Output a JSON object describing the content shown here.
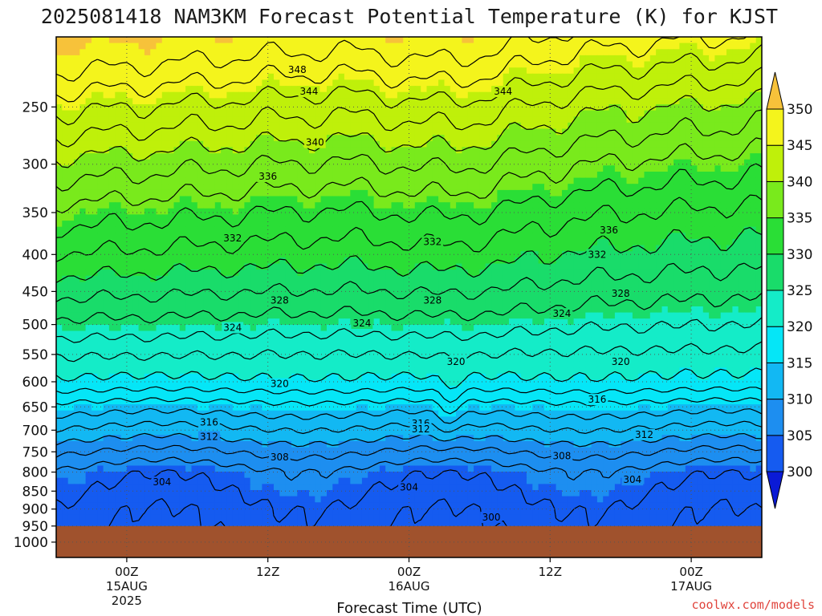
{
  "chart_data": {
    "type": "heatmap",
    "title": "2025081418 NAM3KM Forecast Potential Temperature (K) for KJST",
    "xlabel": "Forecast Time (UTC)",
    "ylabel": "",
    "x_ticks": [
      {
        "hour": 0,
        "label": "00Z",
        "sub1": "15AUG",
        "sub2": "2025"
      },
      {
        "hour": 12,
        "label": "12Z",
        "sub1": "",
        "sub2": ""
      },
      {
        "hour": 24,
        "label": "00Z",
        "sub1": "16AUG",
        "sub2": ""
      },
      {
        "hour": 36,
        "label": "12Z",
        "sub1": "",
        "sub2": ""
      },
      {
        "hour": 48,
        "label": "00Z",
        "sub1": "17AUG",
        "sub2": ""
      }
    ],
    "xlim_hours": [
      -6,
      54
    ],
    "y_pressure_levels": [
      250,
      300,
      350,
      400,
      450,
      500,
      550,
      600,
      650,
      700,
      750,
      800,
      850,
      900,
      950,
      1000
    ],
    "ylim_pressure": [
      200,
      1050
    ],
    "y_scale": "log-pressure",
    "ground_pressure": 950,
    "colorbar": {
      "levels": [
        300,
        305,
        310,
        315,
        320,
        325,
        330,
        335,
        340,
        345,
        350
      ],
      "colors": [
        "#0a1ad6",
        "#155bf0",
        "#1d8ef0",
        "#12b8f3",
        "#05e6f7",
        "#14ecc8",
        "#19dc6a",
        "#2ade36",
        "#79ea1c",
        "#bff00a",
        "#f4f41c",
        "#f7c23a"
      ],
      "units": "K"
    },
    "contour_levels": [
      300,
      302,
      304,
      306,
      308,
      310,
      312,
      314,
      316,
      318,
      320,
      322,
      324,
      326,
      328,
      330,
      332,
      334,
      336,
      338,
      340,
      342,
      344,
      346,
      348
    ],
    "theta_profile": [
      {
        "p": 950,
        "theta": 302.5
      },
      {
        "p": 900,
        "theta": 303
      },
      {
        "p": 850,
        "theta": 304
      },
      {
        "p": 800,
        "theta": 305
      },
      {
        "p": 750,
        "theta": 308
      },
      {
        "p": 700,
        "theta": 311.5
      },
      {
        "p": 650,
        "theta": 315
      },
      {
        "p": 600,
        "theta": 319.5
      },
      {
        "p": 550,
        "theta": 322
      },
      {
        "p": 500,
        "theta": 325
      },
      {
        "p": 450,
        "theta": 328
      },
      {
        "p": 400,
        "theta": 331
      },
      {
        "p": 350,
        "theta": 334
      },
      {
        "p": 300,
        "theta": 338
      },
      {
        "p": 250,
        "theta": 343
      },
      {
        "p": 200,
        "theta": 349.5
      }
    ],
    "contour_labels": [
      {
        "hour": 14.5,
        "p": 222,
        "text": "348"
      },
      {
        "hour": 15.5,
        "p": 238,
        "text": "344"
      },
      {
        "hour": 32,
        "p": 238,
        "text": "344"
      },
      {
        "hour": 16,
        "p": 280,
        "text": "340"
      },
      {
        "hour": 12,
        "p": 312,
        "text": "336"
      },
      {
        "hour": 41,
        "p": 370,
        "text": "336"
      },
      {
        "hour": 9,
        "p": 380,
        "text": "332"
      },
      {
        "hour": 26,
        "p": 384,
        "text": "332"
      },
      {
        "hour": 40,
        "p": 400,
        "text": "332"
      },
      {
        "hour": 13,
        "p": 463,
        "text": "328"
      },
      {
        "hour": 26,
        "p": 463,
        "text": "328"
      },
      {
        "hour": 42,
        "p": 453,
        "text": "328"
      },
      {
        "hour": 9,
        "p": 505,
        "text": "324"
      },
      {
        "hour": 20,
        "p": 498,
        "text": "324"
      },
      {
        "hour": 37,
        "p": 483,
        "text": "324"
      },
      {
        "hour": 28,
        "p": 563,
        "text": "320"
      },
      {
        "hour": 42,
        "p": 563,
        "text": "320"
      },
      {
        "hour": 13,
        "p": 604,
        "text": "320"
      },
      {
        "hour": 40,
        "p": 635,
        "text": "316"
      },
      {
        "hour": 7,
        "p": 683,
        "text": "316"
      },
      {
        "hour": 25,
        "p": 685,
        "text": "316"
      },
      {
        "hour": 7,
        "p": 715,
        "text": "312"
      },
      {
        "hour": 25,
        "p": 698,
        "text": "312"
      },
      {
        "hour": 44,
        "p": 710,
        "text": "312"
      },
      {
        "hour": 13,
        "p": 763,
        "text": "308"
      },
      {
        "hour": 37,
        "p": 760,
        "text": "308"
      },
      {
        "hour": 3,
        "p": 826,
        "text": "304"
      },
      {
        "hour": 24,
        "p": 840,
        "text": "304"
      },
      {
        "hour": 43,
        "p": 820,
        "text": "304"
      },
      {
        "hour": 31,
        "p": 924,
        "text": "300"
      }
    ],
    "credit": "coolwx.com/models"
  }
}
